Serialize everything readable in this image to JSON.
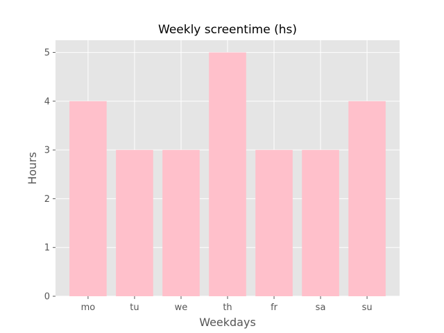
{
  "chart_data": {
    "type": "bar",
    "title": "Weekly screentime (hs)",
    "xlabel": "Weekdays",
    "ylabel": "Hours",
    "categories": [
      "mo",
      "tu",
      "we",
      "th",
      "fr",
      "sa",
      "su"
    ],
    "values": [
      4,
      3,
      3,
      5,
      3,
      3,
      4
    ],
    "ylim": [
      0,
      5.25
    ],
    "yticks": [
      "0",
      "1",
      "2",
      "3",
      "4",
      "5"
    ],
    "grid": true,
    "colors": {
      "bar": "#ffc0cb",
      "plot_background": "#e5e5e5",
      "grid": "#ffffff",
      "tick_mark": "#555555"
    }
  }
}
